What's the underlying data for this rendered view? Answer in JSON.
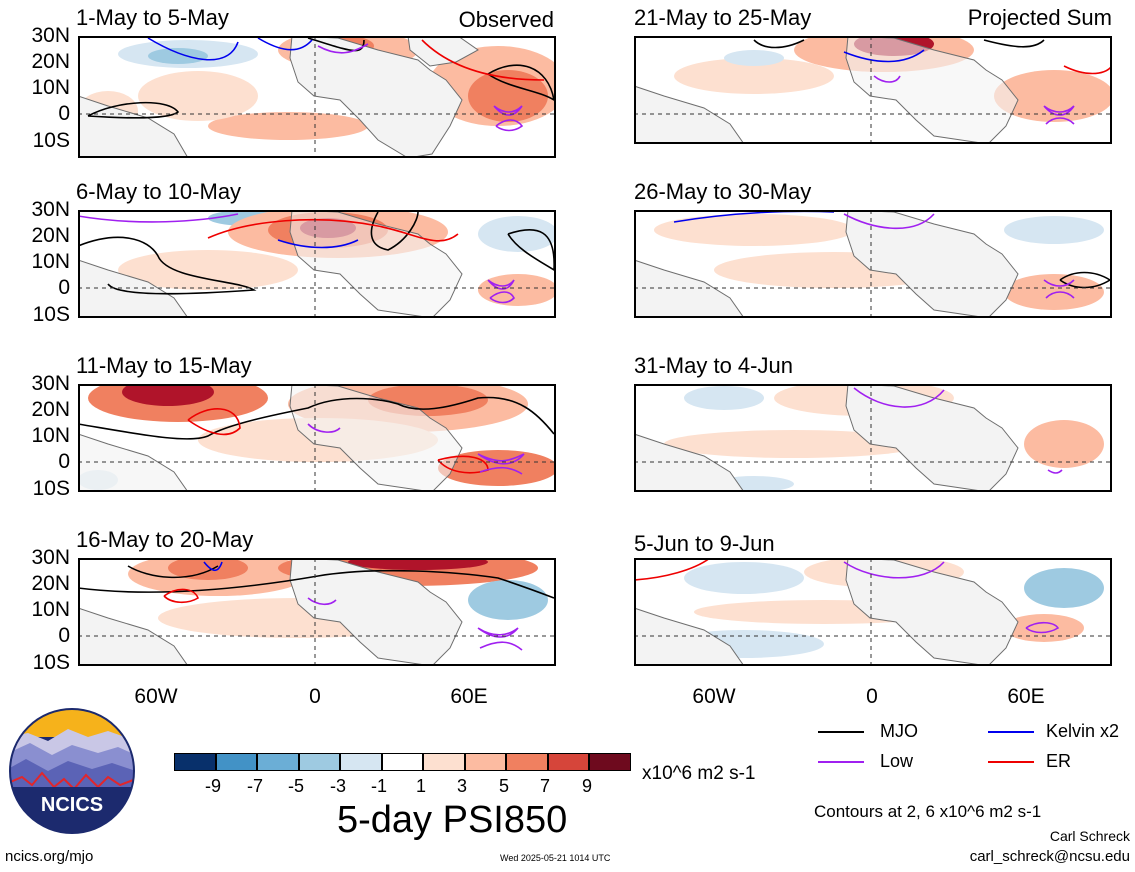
{
  "left_panels": [
    {
      "title": "1-May to 5-May",
      "tag": "Observed"
    },
    {
      "title": "6-May to 10-May",
      "tag": ""
    },
    {
      "title": "11-May to 15-May",
      "tag": ""
    },
    {
      "title": "16-May to 20-May",
      "tag": ""
    }
  ],
  "right_panels": [
    {
      "title": "21-May to 25-May",
      "tag": "Projected Sum"
    },
    {
      "title": "26-May to 30-May",
      "tag": ""
    },
    {
      "title": "31-May to 4-Jun",
      "tag": ""
    },
    {
      "title": "5-Jun to 9-Jun",
      "tag": ""
    }
  ],
  "lat_labels": [
    "30N",
    "20N",
    "10N",
    "0",
    "10S"
  ],
  "lon_labels": [
    "60W",
    "0",
    "60E"
  ],
  "colorbar": {
    "colors": [
      "#08306b",
      "#2171b5",
      "#4292c6",
      "#6baed6",
      "#9ecae1",
      "#d6e6f2",
      "#ffffff",
      "#fde0d0",
      "#fcbba1",
      "#f08060",
      "#d6453a",
      "#b0142a",
      "#6e0a1e"
    ],
    "ticks": [
      "-9",
      "-7",
      "-5",
      "-3",
      "-1",
      "1",
      "3",
      "5",
      "7",
      "9"
    ],
    "units": "x10^6 m2 s-1",
    "title": "5-day PSI850"
  },
  "legend": [
    {
      "label": "MJO",
      "color": "#000000"
    },
    {
      "label": "Kelvin x2",
      "color": "#0000ee"
    },
    {
      "label": "Low",
      "color": "#a020f0"
    },
    {
      "label": "ER",
      "color": "#ee0000"
    }
  ],
  "contours_note": "Contours at 2, 6 x10^6 m2 s-1",
  "author": "Carl Schreck",
  "email": "carl_schreck@ncsu.edu",
  "site": "ncics.org/mjo",
  "timestamp": "Wed 2025-05-21 1014 UTC",
  "logo_text": "NCICS"
}
